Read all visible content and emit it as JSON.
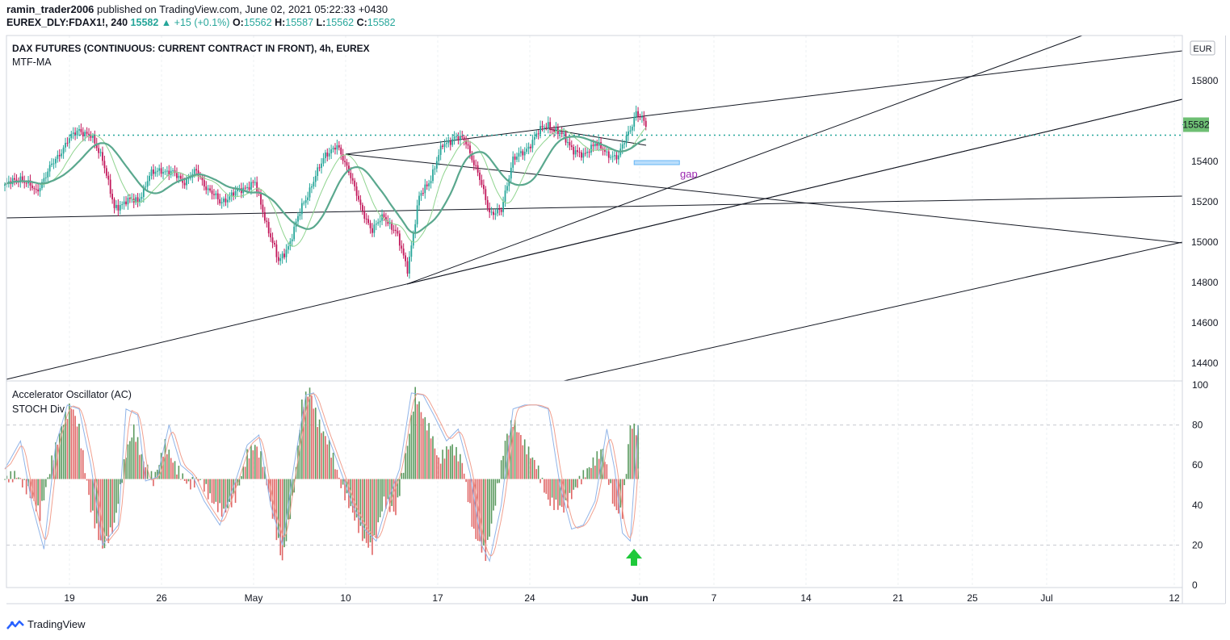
{
  "header": {
    "author": "ramin_trader2006",
    "published_text": "published on TradingView.com, June 02, 2021 05:22:33 +0430",
    "symbol_line": "EUREX_DLY:FDAX1!, 240",
    "last": "15582",
    "change": "+15 (+0.1%)",
    "o_label": "O:",
    "o": "15562",
    "h_label": "H:",
    "h": "15587",
    "l_label": "L:",
    "l": "15562",
    "c_label": "C:",
    "c": "15582"
  },
  "main_pane": {
    "title": "DAX FUTURES (CONTINUOUS: CURRENT CONTRACT IN FRONT), 4h, EUREX",
    "indicator": "MTF-MA",
    "currency": "EUR",
    "price_label": "15582",
    "annotation": "gap"
  },
  "lower_pane": {
    "indicator1": "Accelerator Oscillator (AC)",
    "indicator2": "STOCH Div"
  },
  "footer": {
    "brand": "TradingView"
  },
  "colors": {
    "up": "#26a69a",
    "down": "#ef5350",
    "ac_up": "#5b9a5f",
    "ac_down": "#e06666",
    "dotted": "#26a69a",
    "arrow": "#1ec93a"
  },
  "chart_data": [
    {
      "type": "candlestick",
      "title": "DAX FUTURES (CONTINUOUS: CURRENT CONTRACT IN FRONT), 4h, EUREX",
      "x_ticks": [
        "19",
        "26",
        "May",
        "10",
        "17",
        "24",
        "Jun",
        "7",
        "14",
        "21",
        "25",
        "Jul",
        "12"
      ],
      "y_ticks": [
        14400,
        14600,
        14800,
        15000,
        15200,
        15400,
        15800
      ],
      "ylim": [
        14320,
        16020
      ],
      "last_price": 15582,
      "price_path": [
        [
          0,
          15280
        ],
        [
          8,
          15320
        ],
        [
          16,
          15250
        ],
        [
          24,
          15380
        ],
        [
          32,
          15500
        ],
        [
          38,
          15560
        ],
        [
          44,
          15520
        ],
        [
          50,
          15420
        ],
        [
          56,
          15160
        ],
        [
          62,
          15210
        ],
        [
          68,
          15200
        ],
        [
          74,
          15330
        ],
        [
          80,
          15360
        ],
        [
          86,
          15340
        ],
        [
          92,
          15300
        ],
        [
          98,
          15350
        ],
        [
          104,
          15260
        ],
        [
          110,
          15200
        ],
        [
          116,
          15230
        ],
        [
          122,
          15270
        ],
        [
          128,
          15290
        ],
        [
          134,
          15090
        ],
        [
          140,
          14900
        ],
        [
          146,
          15000
        ],
        [
          152,
          15180
        ],
        [
          158,
          15300
        ],
        [
          164,
          15440
        ],
        [
          170,
          15470
        ],
        [
          176,
          15360
        ],
        [
          182,
          15170
        ],
        [
          188,
          15060
        ],
        [
          194,
          15130
        ],
        [
          200,
          15050
        ],
        [
          206,
          14870
        ],
        [
          212,
          15220
        ],
        [
          218,
          15320
        ],
        [
          224,
          15480
        ],
        [
          230,
          15520
        ],
        [
          236,
          15500
        ],
        [
          242,
          15340
        ],
        [
          248,
          15150
        ],
        [
          254,
          15150
        ],
        [
          260,
          15420
        ],
        [
          266,
          15440
        ],
        [
          272,
          15540
        ],
        [
          278,
          15580
        ],
        [
          284,
          15540
        ],
        [
          290,
          15470
        ],
        [
          296,
          15420
        ],
        [
          302,
          15500
        ],
        [
          308,
          15430
        ],
        [
          314,
          15430
        ],
        [
          320,
          15560
        ],
        [
          323,
          15650
        ],
        [
          328,
          15575
        ]
      ]
    },
    {
      "type": "bar",
      "title": "Accelerator Oscillator (AC)",
      "y_ticks": [
        0,
        20,
        40,
        60,
        80,
        100
      ],
      "ylim": [
        0,
        100
      ],
      "baseline": 53,
      "histogram_path": [
        [
          0,
          53
        ],
        [
          6,
          55
        ],
        [
          12,
          47
        ],
        [
          18,
          35
        ],
        [
          24,
          62
        ],
        [
          30,
          82
        ],
        [
          34,
          90
        ],
        [
          38,
          78
        ],
        [
          44,
          38
        ],
        [
          50,
          18
        ],
        [
          56,
          30
        ],
        [
          62,
          66
        ],
        [
          66,
          78
        ],
        [
          70,
          64
        ],
        [
          76,
          52
        ],
        [
          82,
          70
        ],
        [
          88,
          58
        ],
        [
          94,
          50
        ],
        [
          100,
          53
        ],
        [
          106,
          42
        ],
        [
          112,
          36
        ],
        [
          118,
          44
        ],
        [
          124,
          65
        ],
        [
          128,
          70
        ],
        [
          132,
          62
        ],
        [
          138,
          30
        ],
        [
          142,
          12
        ],
        [
          148,
          48
        ],
        [
          152,
          90
        ],
        [
          156,
          98
        ],
        [
          160,
          82
        ],
        [
          166,
          70
        ],
        [
          172,
          50
        ],
        [
          178,
          36
        ],
        [
          184,
          22
        ],
        [
          188,
          18
        ],
        [
          194,
          42
        ],
        [
          200,
          36
        ],
        [
          206,
          70
        ],
        [
          210,
          96
        ],
        [
          214,
          84
        ],
        [
          218,
          76
        ],
        [
          222,
          62
        ],
        [
          228,
          70
        ],
        [
          234,
          62
        ],
        [
          240,
          26
        ],
        [
          246,
          15
        ],
        [
          250,
          36
        ],
        [
          256,
          72
        ],
        [
          260,
          82
        ],
        [
          266,
          70
        ],
        [
          272,
          60
        ],
        [
          278,
          42
        ],
        [
          286,
          38
        ],
        [
          294,
          52
        ],
        [
          300,
          60
        ],
        [
          306,
          68
        ],
        [
          312,
          38
        ],
        [
          316,
          36
        ],
        [
          320,
          80
        ],
        [
          324,
          77
        ]
      ],
      "stoch_path": [
        [
          0,
          58
        ],
        [
          8,
          72
        ],
        [
          14,
          40
        ],
        [
          20,
          18
        ],
        [
          26,
          70
        ],
        [
          32,
          90
        ],
        [
          38,
          88
        ],
        [
          44,
          60
        ],
        [
          50,
          20
        ],
        [
          58,
          30
        ],
        [
          62,
          88
        ],
        [
          68,
          85
        ],
        [
          72,
          52
        ],
        [
          78,
          54
        ],
        [
          84,
          80
        ],
        [
          90,
          60
        ],
        [
          96,
          55
        ],
        [
          102,
          42
        ],
        [
          110,
          30
        ],
        [
          118,
          52
        ],
        [
          124,
          70
        ],
        [
          130,
          75
        ],
        [
          136,
          40
        ],
        [
          142,
          20
        ],
        [
          148,
          60
        ],
        [
          154,
          95
        ],
        [
          158,
          96
        ],
        [
          164,
          78
        ],
        [
          170,
          62
        ],
        [
          178,
          40
        ],
        [
          184,
          28
        ],
        [
          190,
          22
        ],
        [
          196,
          42
        ],
        [
          202,
          58
        ],
        [
          208,
          96
        ],
        [
          214,
          95
        ],
        [
          220,
          84
        ],
        [
          226,
          72
        ],
        [
          232,
          78
        ],
        [
          238,
          56
        ],
        [
          244,
          20
        ],
        [
          248,
          12
        ],
        [
          254,
          40
        ],
        [
          260,
          88
        ],
        [
          266,
          90
        ],
        [
          272,
          90
        ],
        [
          278,
          88
        ],
        [
          284,
          50
        ],
        [
          290,
          28
        ],
        [
          296,
          30
        ],
        [
          302,
          42
        ],
        [
          308,
          78
        ],
        [
          312,
          58
        ],
        [
          316,
          26
        ],
        [
          320,
          22
        ],
        [
          324,
          80
        ]
      ],
      "signal_annotation": "up-arrow"
    }
  ]
}
